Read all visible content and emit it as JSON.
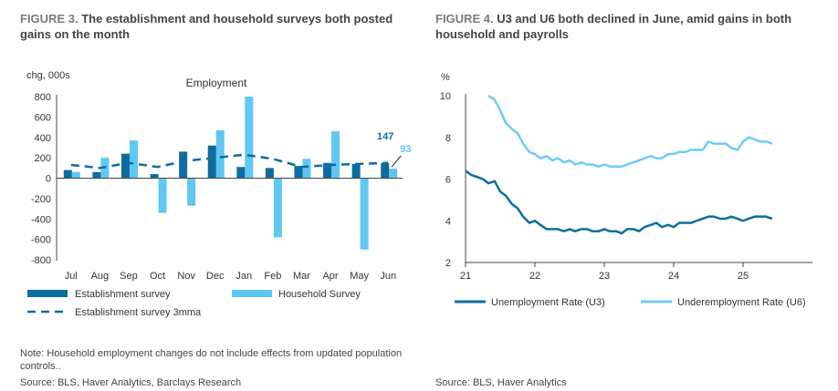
{
  "figure3": {
    "label": "FIGURE 3.",
    "title": "The establishment and household surveys both posted gains on the month",
    "note": "Note: Household employment changes do not include effects from updated population controls..",
    "source": "Source: BLS, Haver Analytics, Barclays Research"
  },
  "figure4": {
    "label": "FIGURE 4.",
    "title": "U3 and U6 both declined in June, amid gains in both household and payrolls",
    "source": "Source: BLS, Haver Analytics"
  },
  "colors": {
    "establishment": "#0e6c9f",
    "household": "#5ec8f2",
    "u3": "#0e6c9f",
    "u6": "#6ccdf2",
    "axis": "#444444"
  },
  "chart_data": [
    {
      "type": "bar",
      "title": "Employment",
      "ylabel": "chg, 000s",
      "xlabel": "",
      "ylim": [
        -800,
        800
      ],
      "yticks": [
        -800,
        -600,
        -400,
        -200,
        0,
        200,
        400,
        600,
        800
      ],
      "categories": [
        "Jul",
        "Aug",
        "Sep",
        "Oct",
        "Nov",
        "Dec",
        "Jan",
        "Feb",
        "Mar",
        "Apr",
        "May",
        "Jun"
      ],
      "series": [
        {
          "name": "Establishment survey",
          "kind": "bar",
          "values": [
            80,
            60,
            240,
            40,
            260,
            320,
            110,
            100,
            120,
            150,
            140,
            147
          ]
        },
        {
          "name": "Household Survey",
          "kind": "bar",
          "values": [
            60,
            200,
            370,
            -340,
            -270,
            470,
            800,
            -580,
            190,
            460,
            -700,
            93
          ]
        },
        {
          "name": "Establishment survey 3mma",
          "kind": "line-dashed",
          "values": [
            130,
            100,
            150,
            110,
            170,
            200,
            230,
            190,
            110,
            130,
            140,
            150
          ]
        }
      ],
      "annotations": [
        {
          "text": "147",
          "series": "Establishment survey",
          "category": "Jun"
        },
        {
          "text": "93",
          "series": "Household Survey",
          "category": "Jun"
        }
      ],
      "legend_position": "bottom"
    },
    {
      "type": "line",
      "title": "",
      "ylabel": "%",
      "xlabel": "",
      "xlim": [
        21,
        26
      ],
      "ylim": [
        2,
        10
      ],
      "xticks": [
        21,
        22,
        23,
        24,
        25
      ],
      "yticks": [
        2,
        4,
        6,
        8,
        10
      ],
      "series": [
        {
          "name": "Unemployment Rate (U3)",
          "x": [
            21.0,
            21.08,
            21.17,
            21.25,
            21.33,
            21.42,
            21.5,
            21.58,
            21.67,
            21.75,
            21.83,
            21.92,
            22.0,
            22.08,
            22.17,
            22.25,
            22.33,
            22.42,
            22.5,
            22.58,
            22.67,
            22.75,
            22.83,
            22.92,
            23.0,
            23.08,
            23.17,
            23.25,
            23.33,
            23.42,
            23.5,
            23.58,
            23.67,
            23.75,
            23.83,
            23.92,
            24.0,
            24.08,
            24.17,
            24.25,
            24.33,
            24.42,
            24.5,
            24.58,
            24.67,
            24.75,
            24.83,
            24.92,
            25.0,
            25.08,
            25.17,
            25.25,
            25.33,
            25.42
          ],
          "y": [
            6.4,
            6.2,
            6.1,
            6.0,
            5.8,
            5.9,
            5.4,
            5.2,
            4.8,
            4.6,
            4.2,
            3.9,
            4.0,
            3.8,
            3.6,
            3.6,
            3.6,
            3.5,
            3.6,
            3.5,
            3.6,
            3.6,
            3.5,
            3.5,
            3.6,
            3.5,
            3.5,
            3.4,
            3.6,
            3.6,
            3.5,
            3.7,
            3.8,
            3.9,
            3.7,
            3.8,
            3.7,
            3.9,
            3.9,
            3.9,
            4.0,
            4.1,
            4.2,
            4.2,
            4.1,
            4.1,
            4.2,
            4.1,
            4.0,
            4.1,
            4.2,
            4.2,
            4.2,
            4.1
          ]
        },
        {
          "name": "Underemployment Rate (U6)",
          "x": [
            21.33,
            21.42,
            21.5,
            21.58,
            21.67,
            21.75,
            21.83,
            21.92,
            22.0,
            22.08,
            22.17,
            22.25,
            22.33,
            22.42,
            22.5,
            22.58,
            22.67,
            22.75,
            22.83,
            22.92,
            23.0,
            23.08,
            23.17,
            23.25,
            23.33,
            23.42,
            23.5,
            23.58,
            23.67,
            23.75,
            23.83,
            23.92,
            24.0,
            24.08,
            24.17,
            24.25,
            24.33,
            24.42,
            24.5,
            24.58,
            24.67,
            24.75,
            24.83,
            24.92,
            25.0,
            25.08,
            25.17,
            25.25,
            25.33,
            25.42
          ],
          "y": [
            10.0,
            9.8,
            9.3,
            8.7,
            8.4,
            8.2,
            7.7,
            7.3,
            7.2,
            7.0,
            7.1,
            6.9,
            7.0,
            6.8,
            6.9,
            6.7,
            6.8,
            6.7,
            6.7,
            6.6,
            6.7,
            6.6,
            6.6,
            6.6,
            6.7,
            6.8,
            6.9,
            7.0,
            7.1,
            7.0,
            7.0,
            7.2,
            7.2,
            7.3,
            7.3,
            7.4,
            7.4,
            7.4,
            7.8,
            7.7,
            7.7,
            7.7,
            7.5,
            7.4,
            7.8,
            8.0,
            7.9,
            7.8,
            7.8,
            7.7
          ]
        }
      ],
      "legend_position": "bottom"
    }
  ]
}
